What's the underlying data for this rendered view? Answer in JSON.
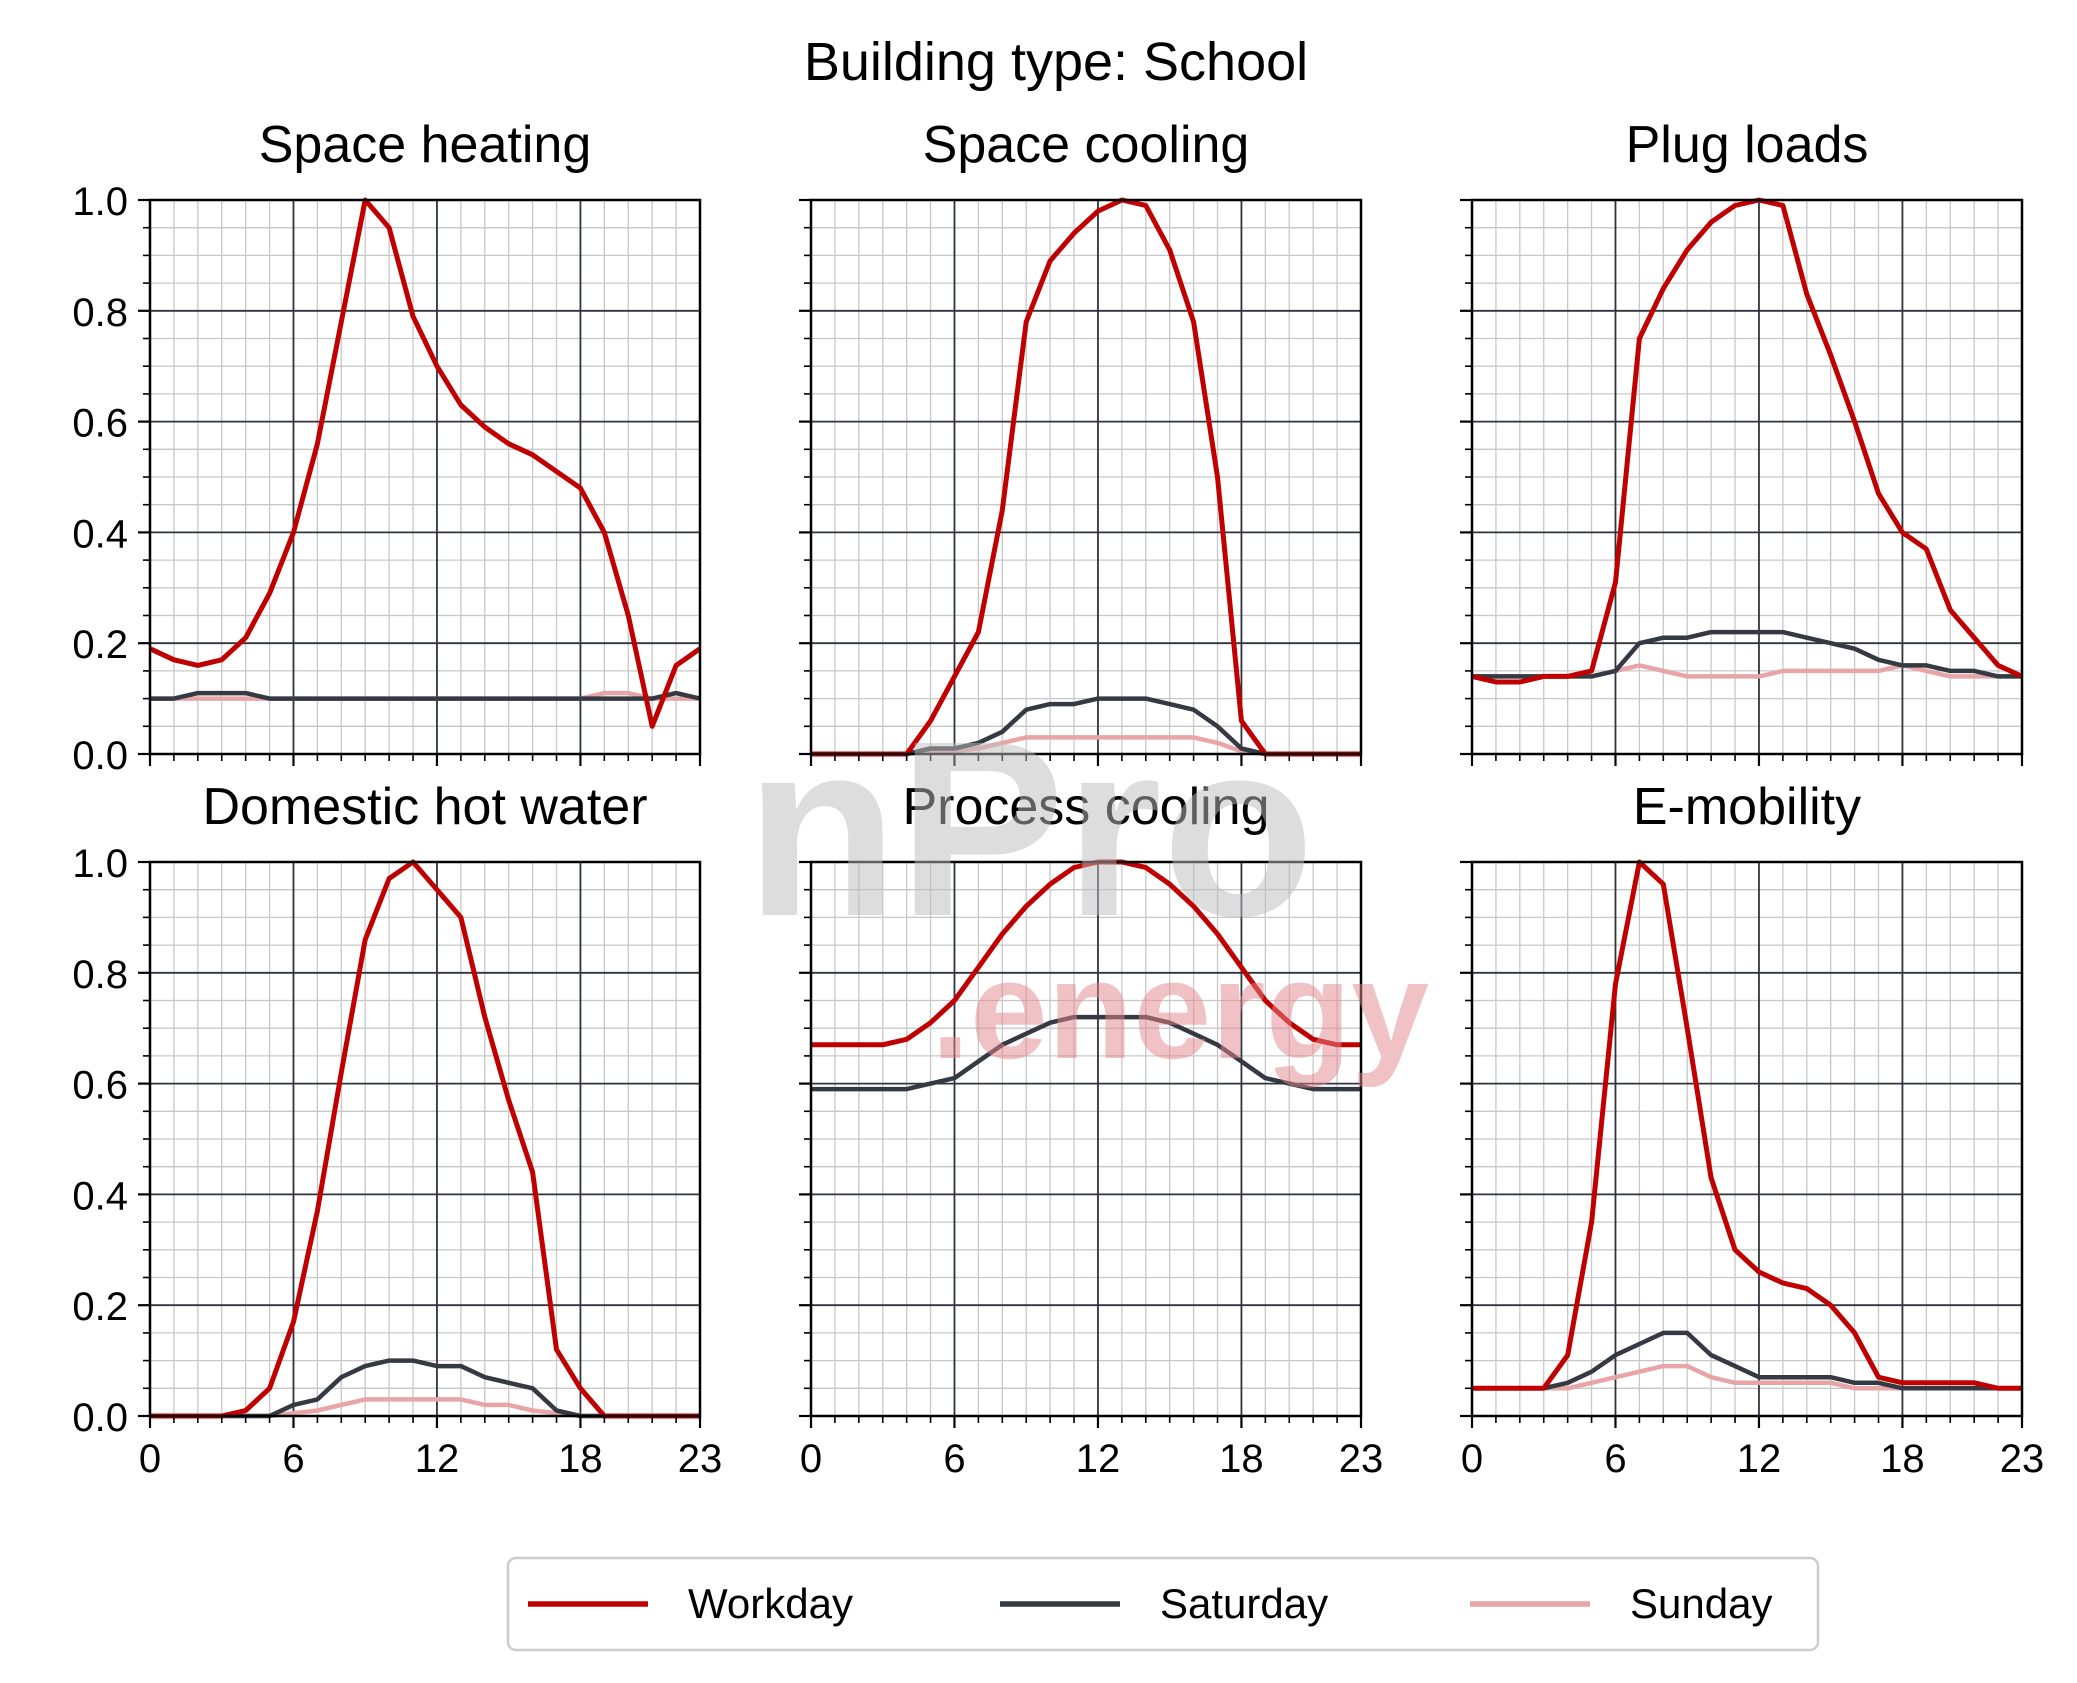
{
  "figure": {
    "title": "Building type: School",
    "watermark": {
      "line1": "nPro",
      "line2": ".energy"
    }
  },
  "colors": {
    "workday": "#c00000",
    "saturday": "#353a42",
    "sunday": "#e8a5a8",
    "minor_grid": "#c8c8c8",
    "major_grid": "#2f3440"
  },
  "legend": {
    "items": [
      {
        "label": "Workday",
        "color": "#c00000"
      },
      {
        "label": "Saturday",
        "color": "#353a42"
      },
      {
        "label": "Sunday",
        "color": "#e8a5a8"
      }
    ],
    "placement": "bottom-center"
  },
  "axes": {
    "x_ticks": [
      "0",
      "6",
      "12",
      "18",
      "23"
    ],
    "x_tick_values": [
      0,
      6,
      12,
      18,
      23
    ],
    "y_ticks": [
      "0.0",
      "0.2",
      "0.4",
      "0.6",
      "0.8",
      "1.0"
    ],
    "y_tick_values": [
      0,
      0.2,
      0.4,
      0.6,
      0.8,
      1.0
    ],
    "xlim": [
      0,
      23
    ],
    "ylim": [
      0,
      1.0
    ],
    "grid": true
  },
  "chart_data": [
    {
      "type": "line",
      "title": "Space heating",
      "x": [
        0,
        1,
        2,
        3,
        4,
        5,
        6,
        7,
        8,
        9,
        10,
        11,
        12,
        13,
        14,
        15,
        16,
        17,
        18,
        19,
        20,
        21,
        22,
        23
      ],
      "series": [
        {
          "name": "Workday",
          "values": [
            0.19,
            0.17,
            0.16,
            0.17,
            0.21,
            0.29,
            0.4,
            0.56,
            0.78,
            1.0,
            0.95,
            0.79,
            0.7,
            0.63,
            0.59,
            0.56,
            0.54,
            0.51,
            0.48,
            0.4,
            0.25,
            0.05,
            0.16,
            0.19
          ]
        },
        {
          "name": "Saturday",
          "values": [
            0.1,
            0.1,
            0.11,
            0.11,
            0.11,
            0.1,
            0.1,
            0.1,
            0.1,
            0.1,
            0.1,
            0.1,
            0.1,
            0.1,
            0.1,
            0.1,
            0.1,
            0.1,
            0.1,
            0.1,
            0.1,
            0.1,
            0.11,
            0.1
          ]
        },
        {
          "name": "Sunday",
          "values": [
            0.1,
            0.1,
            0.1,
            0.1,
            0.1,
            0.1,
            0.1,
            0.1,
            0.1,
            0.1,
            0.1,
            0.1,
            0.1,
            0.1,
            0.1,
            0.1,
            0.1,
            0.1,
            0.1,
            0.11,
            0.11,
            0.1,
            0.1,
            0.1
          ]
        }
      ]
    },
    {
      "type": "line",
      "title": "Space cooling",
      "x": [
        0,
        1,
        2,
        3,
        4,
        5,
        6,
        7,
        8,
        9,
        10,
        11,
        12,
        13,
        14,
        15,
        16,
        17,
        18,
        19,
        20,
        21,
        22,
        23
      ],
      "series": [
        {
          "name": "Workday",
          "values": [
            0,
            0,
            0,
            0,
            0,
            0.06,
            0.14,
            0.22,
            0.44,
            0.78,
            0.89,
            0.94,
            0.98,
            1.0,
            0.99,
            0.91,
            0.78,
            0.5,
            0.06,
            0,
            0,
            0,
            0,
            0
          ]
        },
        {
          "name": "Saturday",
          "values": [
            0,
            0,
            0,
            0,
            0,
            0.01,
            0.01,
            0.02,
            0.04,
            0.08,
            0.09,
            0.09,
            0.1,
            0.1,
            0.1,
            0.09,
            0.08,
            0.05,
            0.01,
            0,
            0,
            0,
            0,
            0
          ]
        },
        {
          "name": "Sunday",
          "values": [
            0,
            0,
            0,
            0,
            0,
            0.005,
            0.005,
            0.01,
            0.02,
            0.03,
            0.03,
            0.03,
            0.03,
            0.03,
            0.03,
            0.03,
            0.03,
            0.02,
            0.005,
            0,
            0,
            0,
            0,
            0
          ]
        }
      ]
    },
    {
      "type": "line",
      "title": "Plug loads",
      "x": [
        0,
        1,
        2,
        3,
        4,
        5,
        6,
        7,
        8,
        9,
        10,
        11,
        12,
        13,
        14,
        15,
        16,
        17,
        18,
        19,
        20,
        21,
        22,
        23
      ],
      "series": [
        {
          "name": "Workday",
          "values": [
            0.14,
            0.13,
            0.13,
            0.14,
            0.14,
            0.15,
            0.31,
            0.75,
            0.84,
            0.91,
            0.96,
            0.99,
            1.0,
            0.99,
            0.83,
            0.72,
            0.6,
            0.47,
            0.4,
            0.37,
            0.26,
            0.21,
            0.16,
            0.14
          ]
        },
        {
          "name": "Saturday",
          "values": [
            0.14,
            0.14,
            0.14,
            0.14,
            0.14,
            0.14,
            0.15,
            0.2,
            0.21,
            0.21,
            0.22,
            0.22,
            0.22,
            0.22,
            0.21,
            0.2,
            0.19,
            0.17,
            0.16,
            0.16,
            0.15,
            0.15,
            0.14,
            0.14
          ]
        },
        {
          "name": "Sunday",
          "values": [
            0.14,
            0.14,
            0.14,
            0.14,
            0.14,
            0.14,
            0.15,
            0.16,
            0.15,
            0.14,
            0.14,
            0.14,
            0.14,
            0.15,
            0.15,
            0.15,
            0.15,
            0.15,
            0.16,
            0.15,
            0.14,
            0.14,
            0.14,
            0.14
          ]
        }
      ]
    },
    {
      "type": "line",
      "title": "Domestic hot water",
      "x": [
        0,
        1,
        2,
        3,
        4,
        5,
        6,
        7,
        8,
        9,
        10,
        11,
        12,
        13,
        14,
        15,
        16,
        17,
        18,
        19,
        20,
        21,
        22,
        23
      ],
      "series": [
        {
          "name": "Workday",
          "values": [
            0,
            0,
            0,
            0,
            0.01,
            0.05,
            0.17,
            0.37,
            0.62,
            0.86,
            0.97,
            1.0,
            0.95,
            0.9,
            0.72,
            0.57,
            0.44,
            0.12,
            0.05,
            0,
            0,
            0,
            0,
            0
          ]
        },
        {
          "name": "Saturday",
          "values": [
            0,
            0,
            0,
            0,
            0,
            0,
            0.02,
            0.03,
            0.07,
            0.09,
            0.1,
            0.1,
            0.09,
            0.09,
            0.07,
            0.06,
            0.05,
            0.01,
            0,
            0,
            0,
            0,
            0,
            0
          ]
        },
        {
          "name": "Sunday",
          "values": [
            0,
            0,
            0,
            0,
            0,
            0,
            0.005,
            0.01,
            0.02,
            0.03,
            0.03,
            0.03,
            0.03,
            0.03,
            0.02,
            0.02,
            0.01,
            0.005,
            0,
            0,
            0,
            0,
            0,
            0
          ]
        }
      ]
    },
    {
      "type": "line",
      "title": "Process cooling",
      "x": [
        0,
        1,
        2,
        3,
        4,
        5,
        6,
        7,
        8,
        9,
        10,
        11,
        12,
        13,
        14,
        15,
        16,
        17,
        18,
        19,
        20,
        21,
        22,
        23
      ],
      "series": [
        {
          "name": "Workday",
          "values": [
            0.67,
            0.67,
            0.67,
            0.67,
            0.68,
            0.71,
            0.75,
            0.81,
            0.87,
            0.92,
            0.96,
            0.99,
            1.0,
            1.0,
            0.99,
            0.96,
            0.92,
            0.87,
            0.81,
            0.75,
            0.71,
            0.68,
            0.67,
            0.67
          ]
        },
        {
          "name": "Saturday",
          "values": [
            0.59,
            0.59,
            0.59,
            0.59,
            0.59,
            0.6,
            0.61,
            0.64,
            0.67,
            0.69,
            0.71,
            0.72,
            0.72,
            0.72,
            0.72,
            0.71,
            0.69,
            0.67,
            0.64,
            0.61,
            0.6,
            0.59,
            0.59,
            0.59
          ]
        }
      ]
    },
    {
      "type": "line",
      "title": "E-mobility",
      "x": [
        0,
        1,
        2,
        3,
        4,
        5,
        6,
        7,
        8,
        9,
        10,
        11,
        12,
        13,
        14,
        15,
        16,
        17,
        18,
        19,
        20,
        21,
        22,
        23
      ],
      "series": [
        {
          "name": "Workday",
          "values": [
            0.05,
            0.05,
            0.05,
            0.05,
            0.11,
            0.35,
            0.78,
            1.0,
            0.96,
            0.7,
            0.43,
            0.3,
            0.26,
            0.24,
            0.23,
            0.2,
            0.15,
            0.07,
            0.06,
            0.06,
            0.06,
            0.06,
            0.05,
            0.05
          ]
        },
        {
          "name": "Saturday",
          "values": [
            0.05,
            0.05,
            0.05,
            0.05,
            0.06,
            0.08,
            0.11,
            0.13,
            0.15,
            0.15,
            0.11,
            0.09,
            0.07,
            0.07,
            0.07,
            0.07,
            0.06,
            0.06,
            0.05,
            0.05,
            0.05,
            0.05,
            0.05,
            0.05
          ]
        },
        {
          "name": "Sunday",
          "values": [
            0.05,
            0.05,
            0.05,
            0.05,
            0.05,
            0.06,
            0.07,
            0.08,
            0.09,
            0.09,
            0.07,
            0.06,
            0.06,
            0.06,
            0.06,
            0.06,
            0.05,
            0.05,
            0.05,
            0.05,
            0.05,
            0.05,
            0.05,
            0.05
          ]
        }
      ]
    }
  ]
}
